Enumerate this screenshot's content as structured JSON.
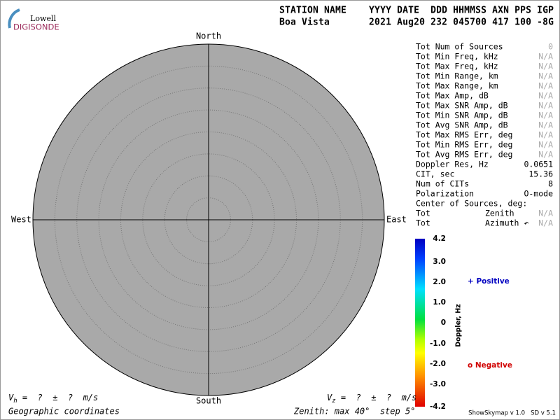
{
  "logo": {
    "top": "Lowell",
    "bottom": "DIGISONDE"
  },
  "header": {
    "labels": "STATION NAME    YYYY DATE  DDD HHMMSS AXN PPS IGP",
    "values": "Boa Vista       2021 Aug20 232 045700 417 100 -8G"
  },
  "skymap": {
    "north": "North",
    "south": "South",
    "west": "West",
    "east": "East"
  },
  "stats": {
    "rows": [
      [
        "Tot Num of Sources",
        "0"
      ],
      [
        "Tot Min Freq, kHz",
        "N/A"
      ],
      [
        "Tot Max Freq, kHz",
        "N/A"
      ],
      [
        "Tot Min Range, km",
        "N/A"
      ],
      [
        "Tot Max Range, km",
        "N/A"
      ],
      [
        "Tot Max Amp, dB",
        "N/A"
      ],
      [
        "Tot Max SNR Amp, dB",
        "N/A"
      ],
      [
        "Tot Min SNR Amp, dB",
        "N/A"
      ],
      [
        "Tot Avg SNR Amp, dB",
        "N/A"
      ],
      [
        "Tot Max RMS Err, deg",
        "N/A"
      ],
      [
        "Tot Min RMS Err, deg",
        "N/A"
      ],
      [
        "Tot Avg RMS Err, deg",
        "N/A"
      ],
      [
        "Doppler Res, Hz",
        "0.0651"
      ],
      [
        "CIT, sec",
        "15.36"
      ],
      [
        "Num of CITs",
        "8"
      ],
      [
        "Polarization",
        "O-mode"
      ]
    ]
  },
  "center": {
    "title": "Center of Sources, deg:",
    "rows": [
      [
        "Tot",
        "Zenith",
        "N/A"
      ],
      [
        "Tot",
        "Azimuth ↶",
        "N/A"
      ]
    ]
  },
  "colorbar": {
    "title": "Doppler, Hz",
    "ticks": [
      "4.2",
      "3.0",
      "2.0",
      "1.0",
      "0",
      "-1.0",
      "-2.0",
      "-3.0",
      "-4.2"
    ]
  },
  "legend": {
    "positive": "+ Positive",
    "negative": "o Negative"
  },
  "footer": {
    "vh": {
      "symbol": "V",
      "sub": "h",
      "text": " =  ?  ±  ?  m/s"
    },
    "vz": {
      "symbol": "V",
      "sub": "z",
      "text": " =  ?  ±  ?  m/s"
    },
    "coords": "Geographic coordinates",
    "zenith": "Zenith: max 40°  step 5°",
    "version": "ShowSkymap v 1.0   SD v 5.1"
  }
}
